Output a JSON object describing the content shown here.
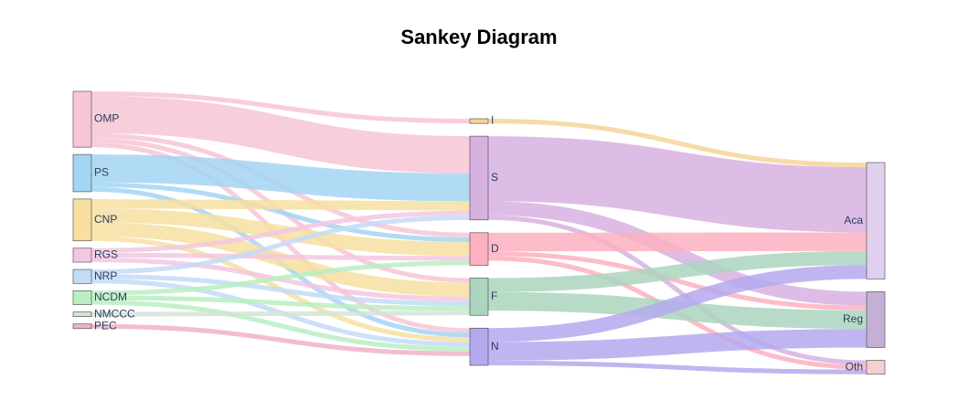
{
  "title": "Sankey Diagram",
  "chart_data": {
    "type": "sankey",
    "nodes": [
      {
        "id": "OMP",
        "label": "OMP",
        "color": "#f7c5d5",
        "column": 0
      },
      {
        "id": "PS",
        "label": "PS",
        "color": "#a3d5f3",
        "column": 0
      },
      {
        "id": "CNP",
        "label": "CNP",
        "color": "#f7dfa0",
        "column": 0
      },
      {
        "id": "RGS",
        "label": "RGS",
        "color": "#f3c7e0",
        "column": 0
      },
      {
        "id": "NRP",
        "label": "NRP",
        "color": "#c3dbf7",
        "column": 0
      },
      {
        "id": "NCDM",
        "label": "NCDM",
        "color": "#b9efc2",
        "column": 0
      },
      {
        "id": "NMCCC",
        "label": "NMCCC",
        "color": "#d3e3d7",
        "column": 0
      },
      {
        "id": "PEC",
        "label": "PEC",
        "color": "#f0b2c9",
        "column": 0
      },
      {
        "id": "I",
        "label": "I",
        "color": "#f7d49a",
        "column": 1
      },
      {
        "id": "S",
        "label": "S",
        "color": "#d7b2e0",
        "column": 1
      },
      {
        "id": "D",
        "label": "D",
        "color": "#fdb0c0",
        "column": 1
      },
      {
        "id": "F",
        "label": "F",
        "color": "#acd5be",
        "column": 1
      },
      {
        "id": "N",
        "label": "N",
        "color": "#b4a9ef",
        "column": 1
      },
      {
        "id": "Aca",
        "label": "Aca",
        "color": "#e0d0ee",
        "column": 2
      },
      {
        "id": "Reg",
        "label": "Reg",
        "color": "#c4b0d5",
        "column": 2
      },
      {
        "id": "Oth",
        "label": "Oth",
        "color": "#f5d0d0",
        "column": 2
      }
    ],
    "links": [
      {
        "source": "OMP",
        "target": "I",
        "value": 1,
        "color": "#f7c5d5"
      },
      {
        "source": "OMP",
        "target": "S",
        "value": 8,
        "color": "#f7c5d5"
      },
      {
        "source": "OMP",
        "target": "D",
        "value": 1,
        "color": "#f7c5d5"
      },
      {
        "source": "OMP",
        "target": "F",
        "value": 1,
        "color": "#f7c5d5"
      },
      {
        "source": "OMP",
        "target": "N",
        "value": 1,
        "color": "#f7c5d5"
      },
      {
        "source": "PS",
        "target": "S",
        "value": 6,
        "color": "#a3d5f3"
      },
      {
        "source": "PS",
        "target": "D",
        "value": 1,
        "color": "#a3d5f3"
      },
      {
        "source": "PS",
        "target": "N",
        "value": 1,
        "color": "#a3d5f3"
      },
      {
        "source": "CNP",
        "target": "S",
        "value": 2,
        "color": "#f7dfa0"
      },
      {
        "source": "CNP",
        "target": "D",
        "value": 3,
        "color": "#f7dfa0"
      },
      {
        "source": "CNP",
        "target": "F",
        "value": 3,
        "color": "#f7dfa0"
      },
      {
        "source": "CNP",
        "target": "N",
        "value": 1,
        "color": "#f7dfa0"
      },
      {
        "source": "RGS",
        "target": "S",
        "value": 1,
        "color": "#f3c7e0"
      },
      {
        "source": "RGS",
        "target": "D",
        "value": 1,
        "color": "#f3c7e0"
      },
      {
        "source": "RGS",
        "target": "F",
        "value": 1,
        "color": "#f3c7e0"
      },
      {
        "source": "NRP",
        "target": "S",
        "value": 1,
        "color": "#c3dbf7"
      },
      {
        "source": "NRP",
        "target": "F",
        "value": 1,
        "color": "#c3dbf7"
      },
      {
        "source": "NRP",
        "target": "N",
        "value": 1,
        "color": "#c3dbf7"
      },
      {
        "source": "NCDM",
        "target": "D",
        "value": 1,
        "color": "#b9efc2"
      },
      {
        "source": "NCDM",
        "target": "F",
        "value": 1,
        "color": "#b9efc2"
      },
      {
        "source": "NCDM",
        "target": "N",
        "value": 1,
        "color": "#b9efc2"
      },
      {
        "source": "NMCCC",
        "target": "F",
        "value": 1,
        "color": "#d3e3d7"
      },
      {
        "source": "PEC",
        "target": "N",
        "value": 1,
        "color": "#f0b2c9"
      },
      {
        "source": "I",
        "target": "Aca",
        "value": 1,
        "color": "#f7d49a"
      },
      {
        "source": "S",
        "target": "Aca",
        "value": 14,
        "color": "#d7b2e0"
      },
      {
        "source": "S",
        "target": "Reg",
        "value": 3,
        "color": "#d7b2e0"
      },
      {
        "source": "S",
        "target": "Oth",
        "value": 1,
        "color": "#d7b2e0"
      },
      {
        "source": "D",
        "target": "Aca",
        "value": 4,
        "color": "#fdb0c0"
      },
      {
        "source": "D",
        "target": "Reg",
        "value": 1,
        "color": "#fdb0c0"
      },
      {
        "source": "D",
        "target": "Oth",
        "value": 1,
        "color": "#fdb0c0"
      },
      {
        "source": "F",
        "target": "Aca",
        "value": 3,
        "color": "#acd5be"
      },
      {
        "source": "F",
        "target": "Reg",
        "value": 4,
        "color": "#acd5be"
      },
      {
        "source": "N",
        "target": "Aca",
        "value": 3,
        "color": "#b4a9ef"
      },
      {
        "source": "N",
        "target": "Reg",
        "value": 4,
        "color": "#b4a9ef"
      },
      {
        "source": "N",
        "target": "Oth",
        "value": 1,
        "color": "#b4a9ef"
      }
    ]
  }
}
